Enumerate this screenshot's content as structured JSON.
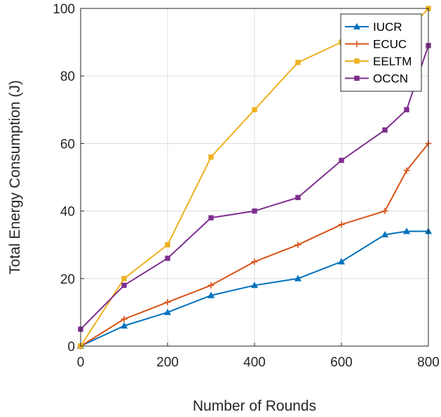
{
  "chart_data": {
    "type": "line",
    "xlabel": "Number of Rounds",
    "ylabel": "Total Energy Consumption (J)",
    "xlim": [
      0,
      800
    ],
    "ylim": [
      0,
      100
    ],
    "xticks": [
      0,
      200,
      400,
      600,
      800
    ],
    "yticks": [
      0,
      20,
      40,
      60,
      80,
      100
    ],
    "grid": true,
    "legend_position": "top-right",
    "series": [
      {
        "name": "IUCR",
        "color": "#0072BD",
        "marker": "triangle",
        "x": [
          0,
          100,
          200,
          300,
          400,
          500,
          600,
          700,
          750,
          800
        ],
        "y": [
          0,
          6,
          10,
          15,
          18,
          20,
          25,
          33,
          34,
          34
        ]
      },
      {
        "name": "ECUC",
        "color": "#D95319",
        "marker": "plus",
        "x": [
          0,
          100,
          200,
          300,
          400,
          500,
          600,
          700,
          750,
          800
        ],
        "y": [
          0,
          8,
          13,
          18,
          25,
          30,
          36,
          40,
          52,
          60
        ]
      },
      {
        "name": "EELTM",
        "color": "#EDB120",
        "marker": "square",
        "x": [
          0,
          100,
          200,
          300,
          400,
          500,
          600,
          700,
          750,
          800
        ],
        "y": [
          0,
          20,
          30,
          56,
          70,
          84,
          90,
          95,
          93,
          100
        ]
      },
      {
        "name": "OCCN",
        "color": "#7E2F8E",
        "marker": "square",
        "x": [
          0,
          100,
          200,
          300,
          400,
          500,
          600,
          700,
          750,
          800
        ],
        "y": [
          5,
          18,
          26,
          38,
          40,
          44,
          55,
          64,
          70,
          89
        ]
      }
    ]
  }
}
